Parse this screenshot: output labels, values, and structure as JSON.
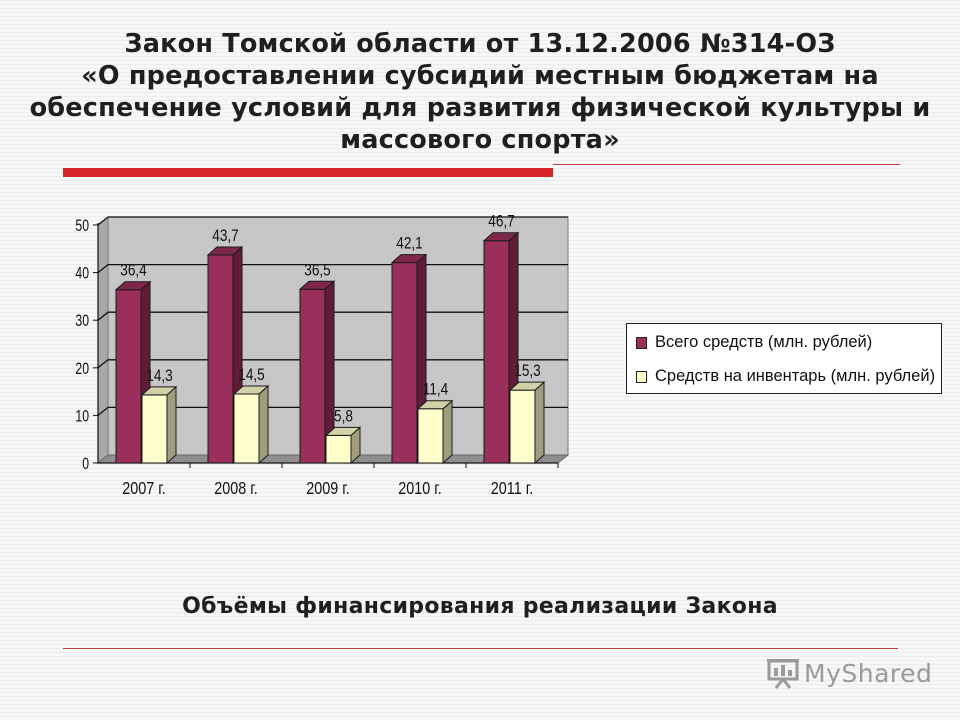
{
  "title": {
    "lines": [
      "Закон Томской области от 13.12.2006 №314-ОЗ",
      "«О предоставлении субсидий местным бюджетам на",
      "обеспечение условий для развития физической культуры и",
      "массового спорта»"
    ]
  },
  "caption": "Объёмы финансирования реализации Закона",
  "watermark": {
    "text": "MyShared",
    "icon": "presentation-board-icon"
  },
  "colors": {
    "accent_red": "#d6262a",
    "series_total": "#9b2f5c",
    "series_equipment": "#ffffcc",
    "plot_wall": "#c6c6c6"
  },
  "chart_data": {
    "type": "bar",
    "categories": [
      "2007 г.",
      "2008 г.",
      "2009 г.",
      "2010 г.",
      "2011 г."
    ],
    "series": [
      {
        "name": "Всего средств (млн. рублей)",
        "values": [
          36.4,
          43.7,
          36.5,
          42.1,
          46.7
        ],
        "labels": [
          "36,4",
          "43,7",
          "36,5",
          "42,1",
          "46,7"
        ],
        "color": "#9b2f5c"
      },
      {
        "name": "Средств на инвентарь (млн. рублей)",
        "values": [
          14.3,
          14.5,
          5.8,
          11.4,
          15.3
        ],
        "labels": [
          "14,3",
          "14,5",
          "5,8",
          "11,4",
          "15,3"
        ],
        "color": "#ffffcc"
      }
    ],
    "ylim": [
      0,
      50
    ],
    "yticks": [
      0,
      10,
      20,
      30,
      40,
      50
    ],
    "grid": true,
    "legend": "right",
    "style": "3d-clustered-column"
  }
}
